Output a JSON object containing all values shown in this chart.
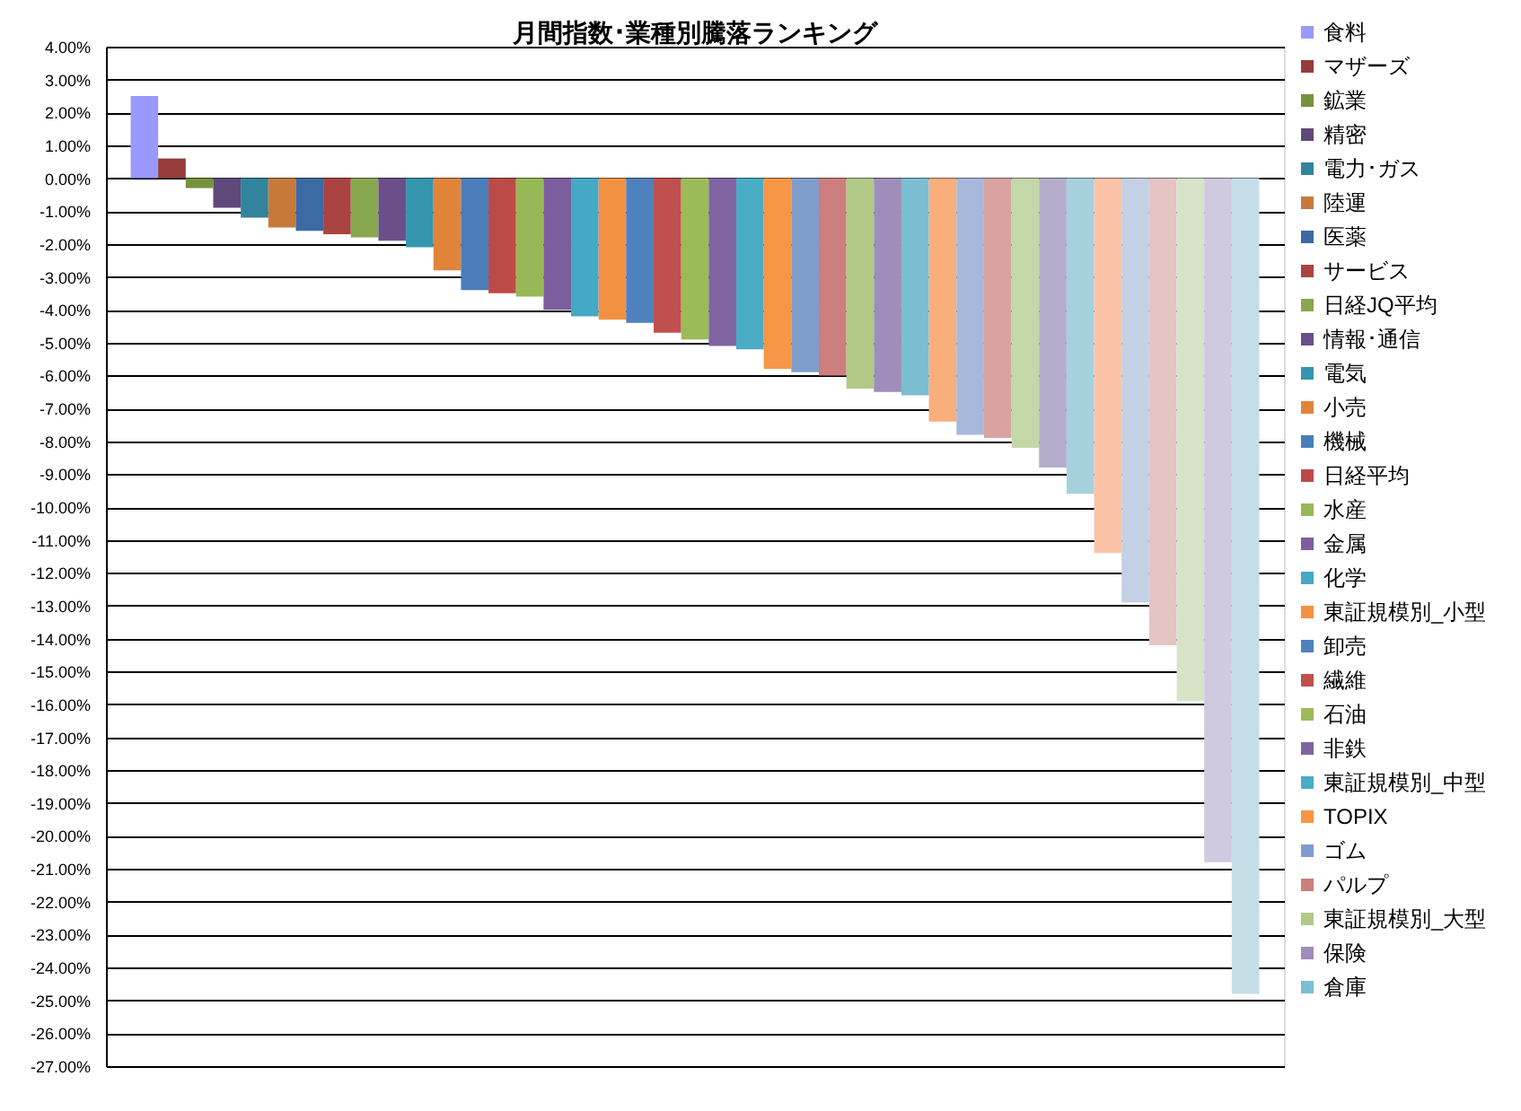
{
  "chart_data": {
    "type": "bar",
    "title": "月間指数･業種別騰落ランキング",
    "categories": [
      null
    ],
    "series": [
      {
        "name": "食料",
        "color": "#9999ff",
        "values": [
          2.5
        ]
      },
      {
        "name": "マザーズ",
        "color": "#963c3a",
        "values": [
          0.6
        ]
      },
      {
        "name": "鉱業",
        "color": "#76923c",
        "values": [
          -0.3
        ]
      },
      {
        "name": "精密",
        "color": "#5f497a",
        "values": [
          -0.9
        ]
      },
      {
        "name": "電力･ガス",
        "color": "#31849b",
        "values": [
          -1.2
        ]
      },
      {
        "name": "陸運",
        "color": "#c7793a",
        "values": [
          -1.5
        ]
      },
      {
        "name": "医薬",
        "color": "#3c6aa3",
        "values": [
          -1.6
        ]
      },
      {
        "name": "サービス",
        "color": "#a94442",
        "values": [
          -1.7
        ]
      },
      {
        "name": "日経JQ平均",
        "color": "#88a84f",
        "values": [
          -1.8
        ]
      },
      {
        "name": "情報･通信",
        "color": "#6a4f8b",
        "values": [
          -1.9
        ]
      },
      {
        "name": "電気",
        "color": "#3595ac",
        "values": [
          -2.1
        ]
      },
      {
        "name": "小売",
        "color": "#e0843a",
        "values": [
          -2.8
        ]
      },
      {
        "name": "機械",
        "color": "#4a7dba",
        "values": [
          -3.4
        ]
      },
      {
        "name": "日経平均",
        "color": "#bc4b48",
        "values": [
          -3.5
        ]
      },
      {
        "name": "水産",
        "color": "#97b857",
        "values": [
          -3.6
        ]
      },
      {
        "name": "金属",
        "color": "#7c5e9e",
        "values": [
          -4.0
        ]
      },
      {
        "name": "化学",
        "color": "#45a8c4",
        "values": [
          -4.2
        ]
      },
      {
        "name": "東証規模別_小型",
        "color": "#f39143",
        "values": [
          -4.3
        ]
      },
      {
        "name": "卸売",
        "color": "#4f81bd",
        "values": [
          -4.4
        ]
      },
      {
        "name": "繊維",
        "color": "#c0504d",
        "values": [
          -4.7
        ]
      },
      {
        "name": "石油",
        "color": "#9bbb59",
        "values": [
          -4.9
        ]
      },
      {
        "name": "非鉄",
        "color": "#8064a2",
        "values": [
          -5.1
        ]
      },
      {
        "name": "東証規模別_中型",
        "color": "#4bacc6",
        "values": [
          -5.2
        ]
      },
      {
        "name": "TOPIX",
        "color": "#f79646",
        "values": [
          -5.8
        ]
      },
      {
        "name": "ゴム",
        "color": "#7f9dcb",
        "values": [
          -5.9
        ]
      },
      {
        "name": "パルプ",
        "color": "#cc7f7d",
        "values": [
          -6.0
        ]
      },
      {
        "name": "東証規模別_大型",
        "color": "#b0c987",
        "values": [
          -6.4
        ]
      },
      {
        "name": "保険",
        "color": "#9f8dba",
        "values": [
          -6.5
        ]
      },
      {
        "name": "倉庫",
        "color": "#7dbdd2",
        "values": [
          -6.6
        ]
      },
      {
        "color": "#f9ae7c",
        "values": [
          -7.4
        ]
      },
      {
        "color": "#a7b9da",
        "values": [
          -7.8
        ]
      },
      {
        "color": "#d9a3a2",
        "values": [
          -7.9
        ]
      },
      {
        "color": "#c4d7a8",
        "values": [
          -8.2
        ]
      },
      {
        "color": "#b6accb",
        "values": [
          -8.8
        ]
      },
      {
        "color": "#a7d0dd",
        "values": [
          -9.6
        ]
      },
      {
        "color": "#fac3a7",
        "values": [
          -11.4
        ]
      },
      {
        "color": "#c4d0e3",
        "values": [
          -12.9
        ]
      },
      {
        "color": "#e5c4c4",
        "values": [
          -14.2
        ]
      },
      {
        "color": "#d8e4c8",
        "values": [
          -15.9
        ]
      },
      {
        "color": "#d0cae0",
        "values": [
          -20.8
        ]
      },
      {
        "color": "#c5dde6",
        "values": [
          -24.8
        ]
      }
    ],
    "ylim": [
      -27,
      4
    ],
    "yticks": [
      {
        "value": 4,
        "label": "4.00%"
      },
      {
        "value": 3,
        "label": "3.00%"
      },
      {
        "value": 2,
        "label": "2.00%"
      },
      {
        "value": 1,
        "label": "1.00%"
      },
      {
        "value": 0,
        "label": "0.00%"
      },
      {
        "value": -1,
        "label": "-1.00%"
      },
      {
        "value": -2,
        "label": "-2.00%"
      },
      {
        "value": -3,
        "label": "-3.00%"
      },
      {
        "value": -4,
        "label": "-4.00%"
      },
      {
        "value": -5,
        "label": "-5.00%"
      },
      {
        "value": -6,
        "label": "-6.00%"
      },
      {
        "value": -7,
        "label": "-7.00%"
      },
      {
        "value": -8,
        "label": "-8.00%"
      },
      {
        "value": -9,
        "label": "-9.00%"
      },
      {
        "value": -10,
        "label": "-10.00%"
      },
      {
        "value": -11,
        "label": "-11.00%"
      },
      {
        "value": -12,
        "label": "-12.00%"
      },
      {
        "value": -13,
        "label": "-13.00%"
      },
      {
        "value": -14,
        "label": "-14.00%"
      },
      {
        "value": -15,
        "label": "-15.00%"
      },
      {
        "value": -16,
        "label": "-16.00%"
      },
      {
        "value": -17,
        "label": "-17.00%"
      },
      {
        "value": -18,
        "label": "-18.00%"
      },
      {
        "value": -19,
        "label": "-19.00%"
      },
      {
        "value": -20,
        "label": "-20.00%"
      },
      {
        "value": -21,
        "label": "-21.00%"
      },
      {
        "value": -22,
        "label": "-22.00%"
      },
      {
        "value": -23,
        "label": "-23.00%"
      },
      {
        "value": -24,
        "label": "-24.00%"
      },
      {
        "value": -25,
        "label": "-25.00%"
      },
      {
        "value": -26,
        "label": "-26.00%"
      },
      {
        "value": -27,
        "label": "-27.00%"
      }
    ],
    "grid": "y",
    "legend": "right",
    "tick_labels": "y"
  }
}
